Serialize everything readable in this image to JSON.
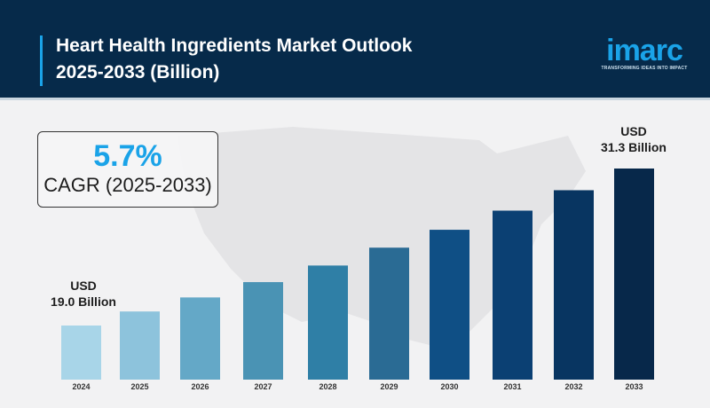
{
  "header": {
    "title_line1": "Heart Health Ingredients Market Outlook",
    "title_line2": "2025-2033 (Billion)"
  },
  "logo": {
    "word": "imarc",
    "tagline": "TRANSFORMING IDEAS INTO IMPACT",
    "color": "#1aa3e8"
  },
  "cagr": {
    "value": "5.7%",
    "label": "CAGR (2025-2033)"
  },
  "annotations": {
    "start": {
      "line1": "USD",
      "line2": "19.0 Billion"
    },
    "end": {
      "line1": "USD",
      "line2": "31.3 Billion"
    }
  },
  "chart_data": {
    "type": "bar",
    "title": "Heart Health Ingredients Market Outlook 2025-2033 (Billion)",
    "categories": [
      "2024",
      "2025",
      "2026",
      "2027",
      "2028",
      "2029",
      "2030",
      "2031",
      "2032",
      "2033"
    ],
    "values": [
      19.0,
      20.1,
      21.2,
      22.4,
      23.7,
      25.1,
      26.5,
      28.0,
      29.6,
      31.3
    ],
    "colors": [
      "#a8d5e8",
      "#8dc3dc",
      "#64a8c7",
      "#4a93b4",
      "#2f7fa6",
      "#2a6b94",
      "#0f4f85",
      "#0b4073",
      "#083561",
      "#07284a"
    ],
    "unit": "USD Billion",
    "grid": false,
    "legend": "none"
  }
}
